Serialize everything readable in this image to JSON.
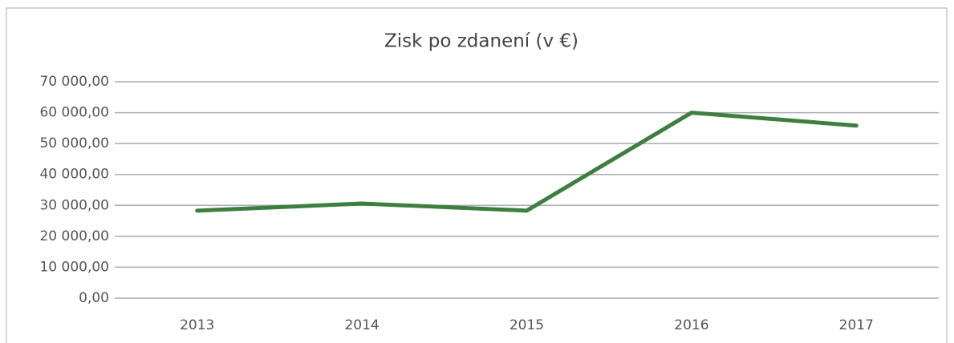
{
  "chart_data": {
    "type": "line",
    "title": "Zisk po zdanení (v €)",
    "categories": [
      "2013",
      "2014",
      "2015",
      "2016",
      "2017"
    ],
    "series": [
      {
        "name": "Zisk po zdanení",
        "color": "#3c7f3e",
        "values": [
          28300,
          30600,
          28300,
          60000,
          55800
        ]
      }
    ],
    "ylim": [
      0,
      70000
    ],
    "yticks": [
      {
        "value": 0,
        "label": "0,00"
      },
      {
        "value": 10000,
        "label": "10 000,00"
      },
      {
        "value": 20000,
        "label": "20 000,00"
      },
      {
        "value": 30000,
        "label": "30 000,00"
      },
      {
        "value": 40000,
        "label": "40 000,00"
      },
      {
        "value": 50000,
        "label": "50 000,00"
      },
      {
        "value": 60000,
        "label": "60 000,00"
      },
      {
        "value": 70000,
        "label": "70 000,00"
      }
    ],
    "grid": true
  }
}
